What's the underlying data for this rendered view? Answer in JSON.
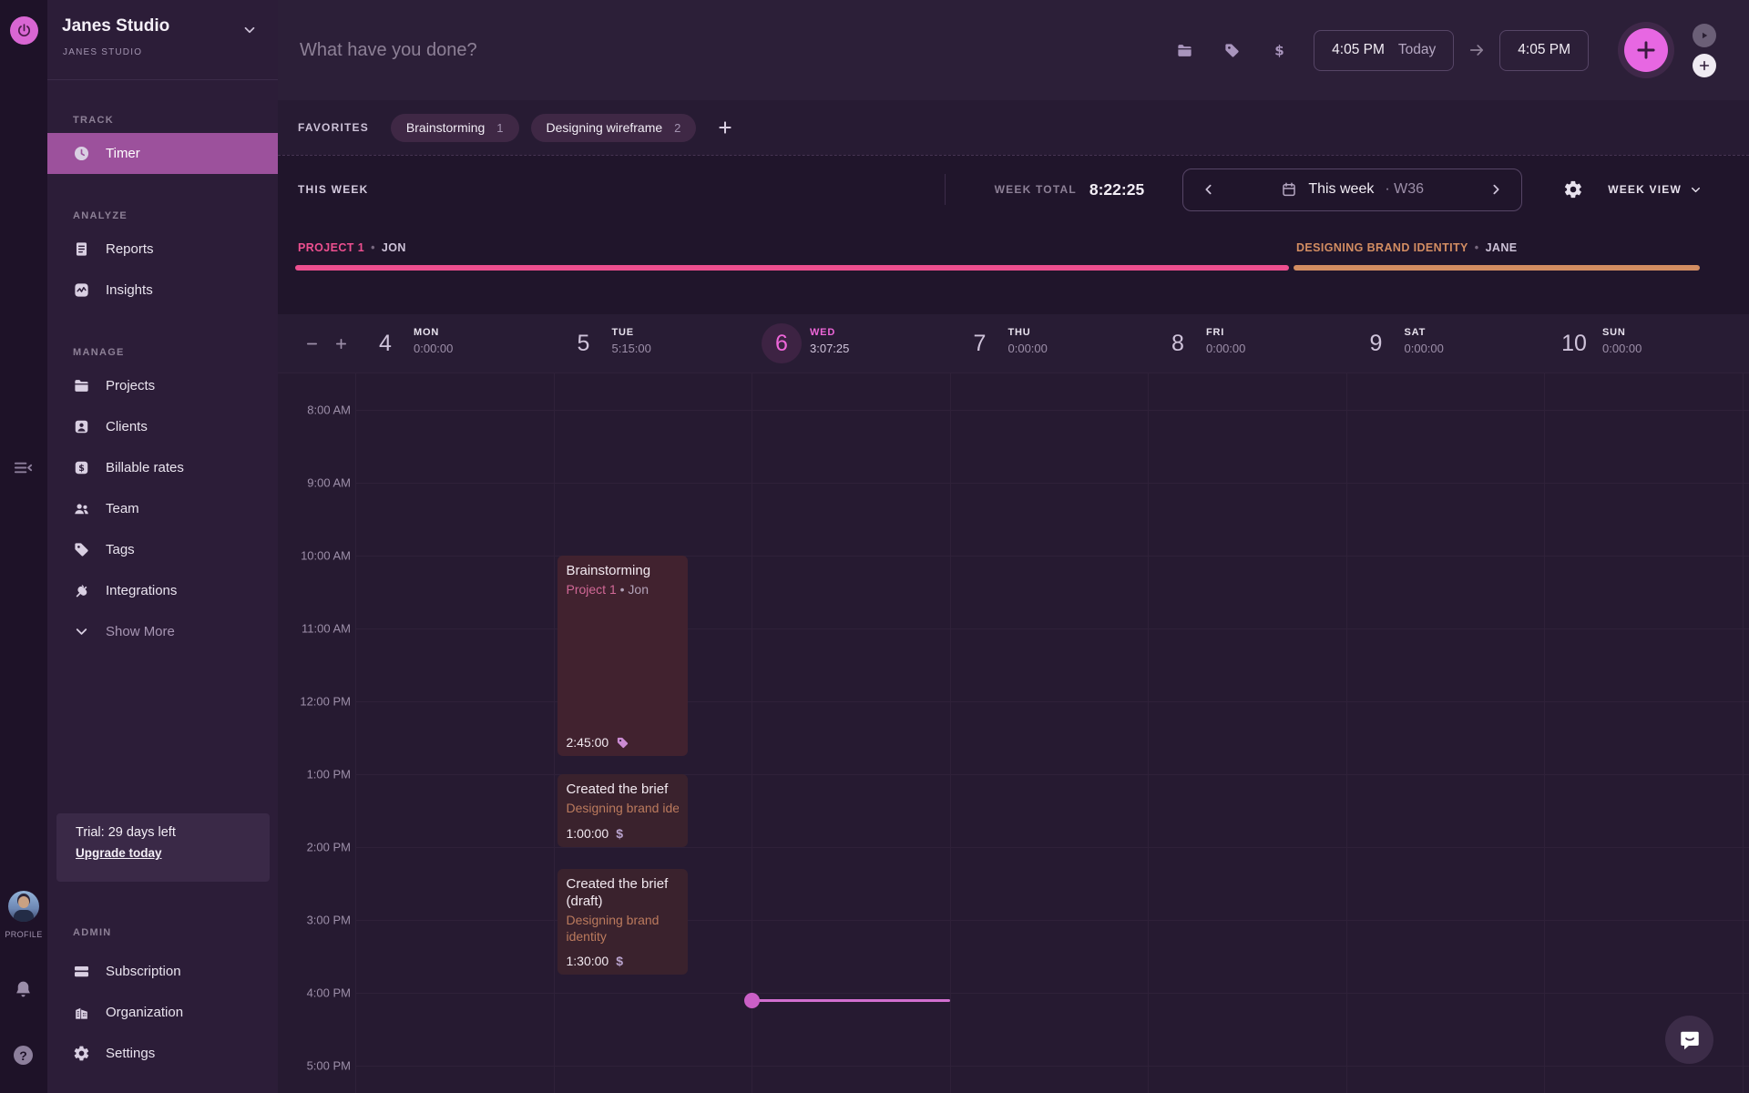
{
  "colors": {
    "accent_pink": "#e767e2",
    "active_nav": "#9c519c",
    "today_pink": "#ee66d9",
    "now_line": "#d26fd0"
  },
  "rail": {
    "profile_label": "PROFILE",
    "help_glyph": "?"
  },
  "sidebar": {
    "workspace_name": "Janes Studio",
    "workspace_org": "JANES STUDIO",
    "sections": [
      {
        "label": "TRACK",
        "items": [
          {
            "label": "Timer",
            "icon": "clock",
            "active": true
          }
        ]
      },
      {
        "label": "ANALYZE",
        "items": [
          {
            "label": "Reports",
            "icon": "document"
          },
          {
            "label": "Insights",
            "icon": "chart"
          }
        ]
      },
      {
        "label": "MANAGE",
        "items": [
          {
            "label": "Projects",
            "icon": "folder"
          },
          {
            "label": "Clients",
            "icon": "person-card"
          },
          {
            "label": "Billable rates",
            "icon": "dollar-square"
          },
          {
            "label": "Team",
            "icon": "people"
          },
          {
            "label": "Tags",
            "icon": "tag"
          },
          {
            "label": "Integrations",
            "icon": "plug"
          },
          {
            "label": "Show More",
            "icon": "chevron-down",
            "muted": true
          }
        ]
      }
    ],
    "trial_text": "Trial: 29 days left",
    "trial_link": "Upgrade today",
    "admin": {
      "label": "ADMIN",
      "items": [
        {
          "label": "Subscription",
          "icon": "credit-card"
        },
        {
          "label": "Organization",
          "icon": "building"
        },
        {
          "label": "Settings",
          "icon": "gear"
        }
      ]
    }
  },
  "topbar": {
    "placeholder": "What have you done?",
    "start_time": "4:05 PM",
    "start_day": "Today",
    "end_time": "4:05 PM"
  },
  "favorites": {
    "label": "FAVORITES",
    "chips": [
      {
        "label": "Brainstorming",
        "count": "1"
      },
      {
        "label": "Designing wireframe",
        "count": "2"
      }
    ]
  },
  "week": {
    "title": "THIS WEEK",
    "total_label": "WEEK TOTAL",
    "total_value": "8:22:25",
    "nav_label": "This week",
    "nav_separator": "·",
    "nav_week": "W36",
    "view_label": "WEEK VIEW",
    "projects": [
      {
        "name": "PROJECT 1",
        "member": "JON",
        "color": "#ed4f8f",
        "width_pct": 70.8
      },
      {
        "name": "DESIGNING BRAND IDENTITY",
        "member": "JANE",
        "color": "#d38d62",
        "width_pct": 28.9
      }
    ]
  },
  "calendar": {
    "days": [
      {
        "num": "4",
        "abbr": "MON",
        "total": "0:00:00",
        "today": false
      },
      {
        "num": "5",
        "abbr": "TUE",
        "total": "5:15:00",
        "today": false
      },
      {
        "num": "6",
        "abbr": "WED",
        "total": "3:07:25",
        "today": true
      },
      {
        "num": "7",
        "abbr": "THU",
        "total": "0:00:00",
        "today": false
      },
      {
        "num": "8",
        "abbr": "FRI",
        "total": "0:00:00",
        "today": false
      },
      {
        "num": "9",
        "abbr": "SAT",
        "total": "0:00:00",
        "today": false
      },
      {
        "num": "10",
        "abbr": "SUN",
        "total": "0:00:00",
        "today": false
      }
    ],
    "hours": [
      "8:00 AM",
      "9:00 AM",
      "10:00 AM",
      "11:00 AM",
      "12:00 PM",
      "1:00 PM",
      "2:00 PM",
      "3:00 PM",
      "4:00 PM",
      "5:00 PM"
    ],
    "events": [
      {
        "title": "Brainstorming",
        "project": "Project 1",
        "member": "Jon",
        "duration": "2:45:00",
        "day_index": 1,
        "start_hour": 10.0,
        "end_hour": 12.75,
        "variant": "pink",
        "badge": "tag",
        "clip": false
      },
      {
        "title": "Created the brief",
        "project": "Designing brand identity",
        "member": "",
        "duration": "1:00:00",
        "day_index": 1,
        "start_hour": 13.0,
        "end_hour": 14.0,
        "variant": "tan",
        "badge": "dollar",
        "clip": true
      },
      {
        "title": "Created the brief (draft)",
        "project": "Designing brand identity",
        "member": "",
        "duration": "1:30:00",
        "day_index": 1,
        "start_hour": 14.3,
        "end_hour": 15.75,
        "variant": "tan",
        "badge": "dollar",
        "clip": false
      }
    ],
    "now_indicator": {
      "day_index": 2,
      "hour": 16.1
    }
  }
}
